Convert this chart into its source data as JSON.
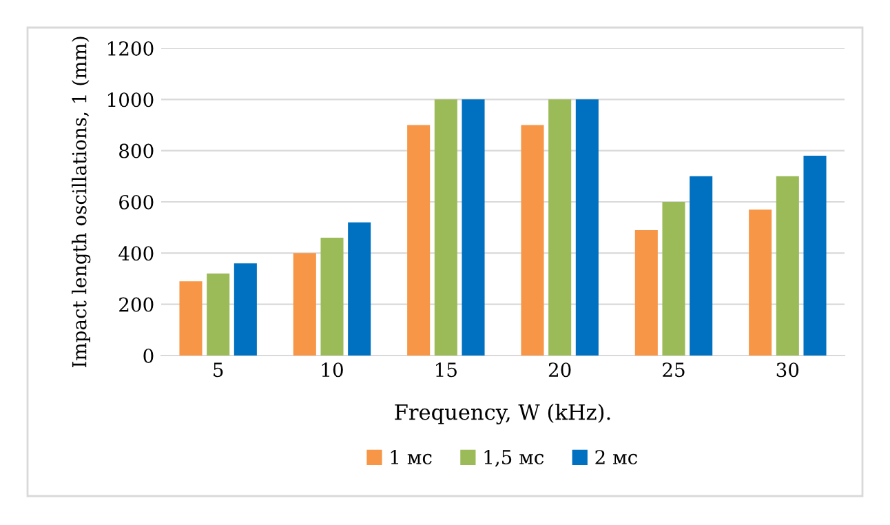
{
  "chart_data": {
    "type": "bar",
    "xlabel": "Frequency, W (kHz).",
    "ylabel": "Impact length oscillations, 1 (mm)",
    "categories": [
      "5",
      "10",
      "15",
      "20",
      "25",
      "30"
    ],
    "series": [
      {
        "name": "1 мс",
        "color": "#f79646",
        "values": [
          290,
          400,
          900,
          900,
          490,
          570
        ]
      },
      {
        "name": "1,5 мс",
        "color": "#9bbb59",
        "values": [
          320,
          460,
          1000,
          1000,
          600,
          700
        ]
      },
      {
        "name": "2 мс",
        "color": "#0070c0",
        "values": [
          360,
          520,
          1000,
          1000,
          700,
          780
        ]
      }
    ],
    "ylim": [
      0,
      1200
    ],
    "yticks": [
      0,
      200,
      400,
      600,
      800,
      1000,
      1200
    ],
    "grid": "y",
    "legend": "bottom"
  }
}
